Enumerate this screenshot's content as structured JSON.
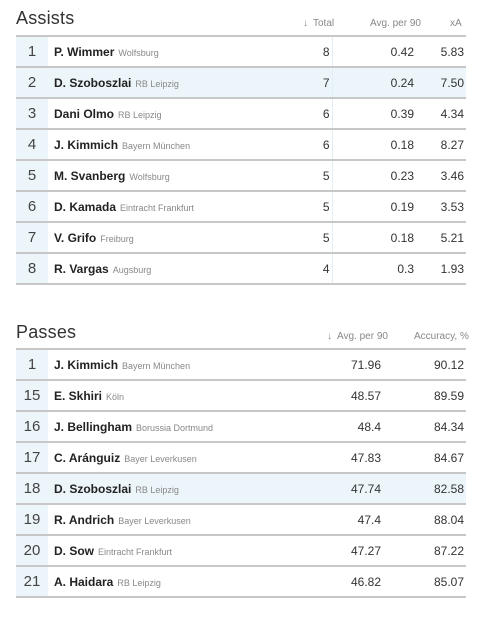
{
  "assists": {
    "title": "Assists",
    "headers": {
      "arrow": "↓",
      "total": "Total",
      "avg": "Avg. per 90",
      "xa": "xA"
    },
    "rows": [
      {
        "rank": "1",
        "name": "P. Wimmer",
        "team": "Wolfsburg",
        "total": "8",
        "avg": "0.42",
        "xa": "5.83"
      },
      {
        "rank": "2",
        "name": "D. Szoboszlai",
        "team": "RB Leipzig",
        "total": "7",
        "avg": "0.24",
        "xa": "7.50"
      },
      {
        "rank": "3",
        "name": "Dani Olmo",
        "team": "RB Leipzig",
        "total": "6",
        "avg": "0.39",
        "xa": "4.34"
      },
      {
        "rank": "4",
        "name": "J. Kimmich",
        "team": "Bayern München",
        "total": "6",
        "avg": "0.18",
        "xa": "8.27"
      },
      {
        "rank": "5",
        "name": "M. Svanberg",
        "team": "Wolfsburg",
        "total": "5",
        "avg": "0.23",
        "xa": "3.46"
      },
      {
        "rank": "6",
        "name": "D. Kamada",
        "team": "Eintracht Frankfurt",
        "total": "5",
        "avg": "0.19",
        "xa": "3.53"
      },
      {
        "rank": "7",
        "name": "V. Grifo",
        "team": "Freiburg",
        "total": "5",
        "avg": "0.18",
        "xa": "5.21"
      },
      {
        "rank": "8",
        "name": "R. Vargas",
        "team": "Augsburg",
        "total": "4",
        "avg": "0.3",
        "xa": "1.93"
      }
    ]
  },
  "passes": {
    "title": "Passes",
    "headers": {
      "arrow": "↓",
      "avg": "Avg. per 90",
      "accuracy": "Accuracy, %"
    },
    "rows": [
      {
        "rank": "1",
        "name": "J. Kimmich",
        "team": "Bayern München",
        "avg": "71.96",
        "accuracy": "90.12"
      },
      {
        "rank": "15",
        "name": "E. Skhiri",
        "team": "Köln",
        "avg": "48.57",
        "accuracy": "89.59"
      },
      {
        "rank": "16",
        "name": "J. Bellingham",
        "team": "Borussia Dortmund",
        "avg": "48.4",
        "accuracy": "84.34"
      },
      {
        "rank": "17",
        "name": "C. Aránguiz",
        "team": "Bayer Leverkusen",
        "avg": "47.83",
        "accuracy": "84.67"
      },
      {
        "rank": "18",
        "name": "D. Szoboszlai",
        "team": "RB Leipzig",
        "avg": "47.74",
        "accuracy": "82.58"
      },
      {
        "rank": "19",
        "name": "R. Andrich",
        "team": "Bayer Leverkusen",
        "avg": "47.4",
        "accuracy": "88.04"
      },
      {
        "rank": "20",
        "name": "D. Sow",
        "team": "Eintracht Frankfurt",
        "avg": "47.27",
        "accuracy": "87.22"
      },
      {
        "rank": "21",
        "name": "A. Haidara",
        "team": "RB Leipzig",
        "avg": "46.82",
        "accuracy": "85.07"
      }
    ]
  },
  "highlight_player": "D. Szoboszlai",
  "colors": {
    "rank_bg": "#ebf5fa",
    "divider": "#c7c7c7",
    "muted_text": "#888888"
  }
}
